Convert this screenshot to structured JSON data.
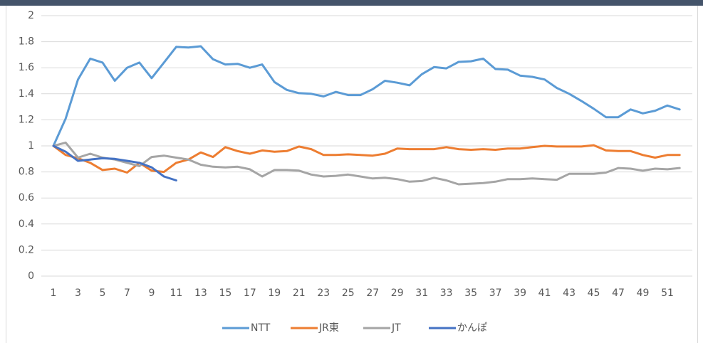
{
  "chart_data": {
    "type": "line",
    "categories": [
      1,
      null,
      3,
      null,
      5,
      null,
      7,
      null,
      9,
      null,
      11,
      null,
      13,
      null,
      15,
      null,
      17,
      null,
      19,
      null,
      21,
      null,
      23,
      null,
      25,
      null,
      27,
      null,
      29,
      null,
      31,
      null,
      33,
      null,
      35,
      null,
      37,
      null,
      39,
      null,
      41,
      null,
      43,
      null,
      45,
      null,
      47,
      null,
      49,
      null,
      51,
      null
    ],
    "series": [
      {
        "name": "NTT",
        "color": "#5b9bd5",
        "values": [
          1.0,
          1.21,
          1.51,
          1.67,
          1.64,
          1.5,
          1.6,
          1.64,
          1.52,
          1.64,
          1.76,
          1.755,
          1.765,
          1.665,
          1.625,
          1.63,
          1.6,
          1.625,
          1.49,
          1.43,
          1.405,
          1.4,
          1.38,
          1.415,
          1.39,
          1.39,
          1.435,
          1.5,
          1.485,
          1.465,
          1.55,
          1.605,
          1.595,
          1.645,
          1.65,
          1.67,
          1.59,
          1.585,
          1.54,
          1.53,
          1.51,
          1.445,
          1.4,
          1.345,
          1.285,
          1.22,
          1.22,
          1.28,
          1.25,
          1.27,
          1.31,
          1.28
        ]
      },
      {
        "name": "JR東",
        "color": "#ed7d31",
        "values": [
          1.0,
          0.93,
          0.905,
          0.87,
          0.815,
          0.825,
          0.795,
          0.87,
          0.81,
          0.8,
          0.87,
          0.895,
          0.95,
          0.915,
          0.99,
          0.96,
          0.94,
          0.965,
          0.955,
          0.96,
          0.995,
          0.975,
          0.93,
          0.93,
          0.935,
          0.93,
          0.925,
          0.94,
          0.98,
          0.975,
          0.975,
          0.975,
          0.99,
          0.975,
          0.97,
          0.975,
          0.97,
          0.98,
          0.98,
          0.99,
          1.0,
          0.995,
          0.995,
          0.995,
          1.005,
          0.965,
          0.96,
          0.96,
          0.93,
          0.91,
          0.93,
          0.93
        ]
      },
      {
        "name": "JT",
        "color": "#a5a5a5",
        "values": [
          1.0,
          1.025,
          0.91,
          0.94,
          0.91,
          0.895,
          0.87,
          0.845,
          0.915,
          0.925,
          0.91,
          0.895,
          0.855,
          0.84,
          0.835,
          0.84,
          0.82,
          0.765,
          0.815,
          0.815,
          0.81,
          0.78,
          0.765,
          0.77,
          0.78,
          0.765,
          0.75,
          0.755,
          0.745,
          0.725,
          0.73,
          0.755,
          0.735,
          0.705,
          0.71,
          0.715,
          0.725,
          0.745,
          0.745,
          0.75,
          0.745,
          0.74,
          0.785,
          0.785,
          0.785,
          0.795,
          0.83,
          0.825,
          0.81,
          0.825,
          0.82,
          0.83
        ]
      },
      {
        "name": "かんぽ",
        "color": "#4472c4",
        "values": [
          1.0,
          0.955,
          0.885,
          0.895,
          0.905,
          0.9,
          0.885,
          0.87,
          0.835,
          0.765,
          0.735,
          null,
          null,
          null,
          null,
          null,
          null,
          null,
          null,
          null,
          null,
          null,
          null,
          null,
          null,
          null,
          null,
          null,
          null,
          null,
          null,
          null,
          null,
          null,
          null,
          null,
          null,
          null,
          null,
          null,
          null,
          null,
          null,
          null,
          null,
          null,
          null,
          null,
          null,
          null,
          null,
          null
        ]
      }
    ],
    "ylim": [
      0,
      2
    ],
    "yticks": [
      0,
      0.2,
      0.4,
      0.6,
      0.8,
      1,
      1.2,
      1.4,
      1.6,
      1.8,
      2
    ],
    "grid": true,
    "legend": "bottom"
  }
}
